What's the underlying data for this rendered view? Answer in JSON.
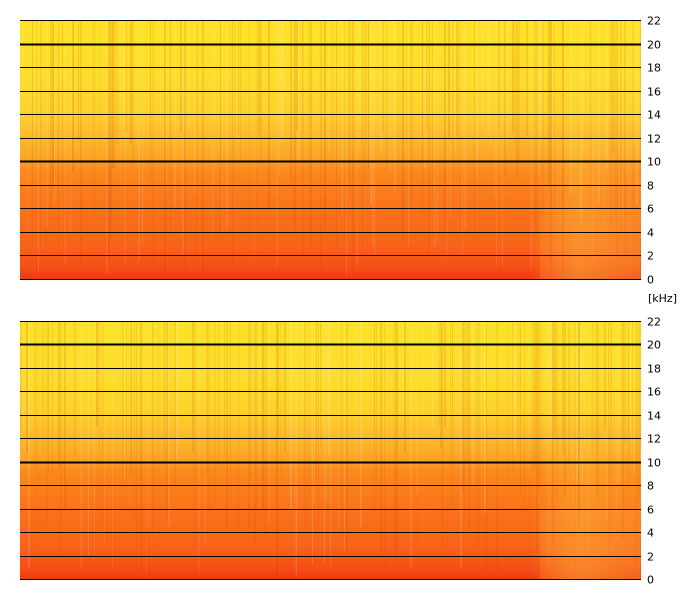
{
  "unit_label": "[kHz]",
  "colors": {
    "grid": "#000000",
    "low_freq": "#f03c10",
    "mid_freq": "#fb8c1c",
    "high_freq": "#fde324",
    "background": "#ffffff"
  },
  "chart_data": [
    {
      "type": "heatmap",
      "title": "",
      "xlabel": "",
      "ylabel": "[kHz]",
      "ylim": [
        0,
        22
      ],
      "y_ticks": [
        0,
        2,
        4,
        6,
        8,
        10,
        12,
        14,
        16,
        18,
        20,
        22
      ],
      "y_tick_labels": [
        "0",
        "2",
        "4",
        "6",
        "8",
        "10",
        "12",
        "14",
        "16",
        "18",
        "20",
        "22"
      ],
      "emphasized_gridlines": [
        10,
        20
      ],
      "grid": true,
      "tick_side": "right"
    },
    {
      "type": "heatmap",
      "title": "",
      "xlabel": "",
      "ylabel": "[kHz]",
      "ylim": [
        0,
        22
      ],
      "y_ticks": [
        0,
        2,
        4,
        6,
        8,
        10,
        12,
        14,
        16,
        18,
        20,
        22
      ],
      "y_tick_labels": [
        "0",
        "2",
        "4",
        "6",
        "8",
        "10",
        "12",
        "14",
        "16",
        "18",
        "20",
        "22"
      ],
      "emphasized_gridlines": [
        10,
        20
      ],
      "grid": true,
      "tick_side": "right"
    }
  ]
}
